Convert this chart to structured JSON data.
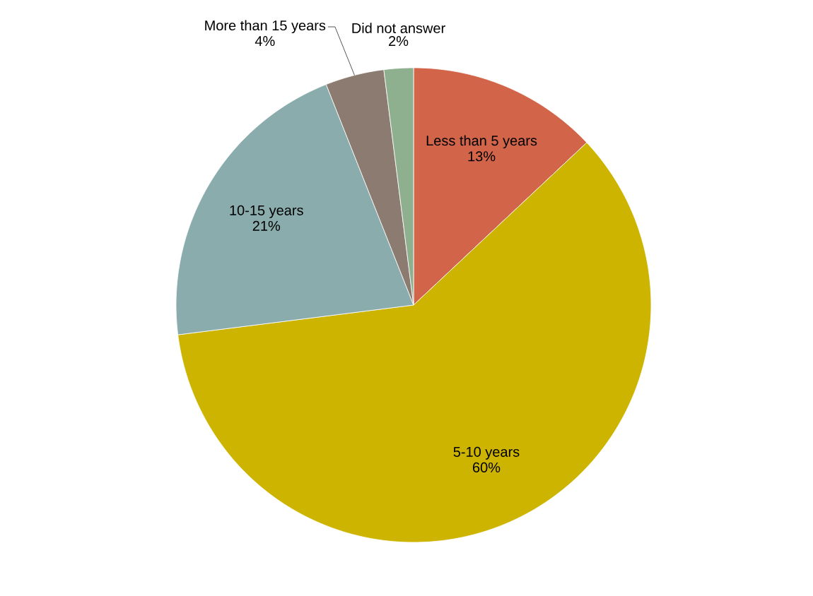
{
  "chart_data": {
    "type": "pie",
    "categories": [
      "Less than 5 years",
      "5-10 years",
      "10-15 years",
      "More than 15 years",
      "Did not answer"
    ],
    "values": [
      13,
      60,
      21,
      4,
      2
    ],
    "value_labels": [
      "13%",
      "60%",
      "21%",
      "4%",
      "2%"
    ],
    "colors": [
      "#d2644a",
      "#ccb400",
      "#8aacac",
      "#8b7b70",
      "#8fb08f"
    ]
  }
}
